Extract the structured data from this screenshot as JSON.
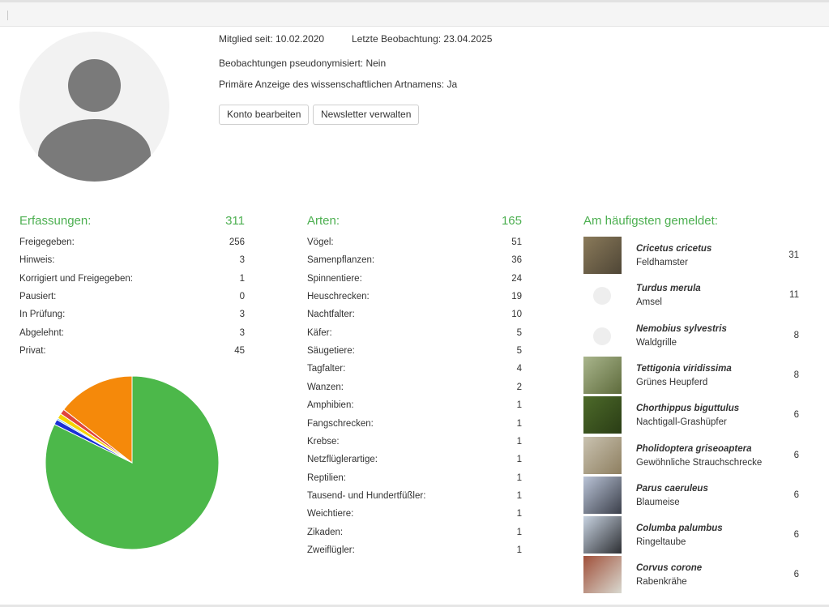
{
  "profile": {
    "member_since": "Mitglied seit: 10.02.2020",
    "last_observation": "Letzte Beobachtung: 23.04.2025",
    "pseudonymized": "Beobachtungen pseudonymisiert: Nein",
    "scientific_name_display": "Primäre Anzeige des wissenschaftlichen Artnamens: Ja",
    "edit_account_label": "Konto bearbeiten",
    "newsletter_label": "Newsletter verwalten"
  },
  "erfassungen": {
    "title": "Erfassungen:",
    "total": "311",
    "rows": [
      {
        "label": "Freigegeben:",
        "value": 256
      },
      {
        "label": "Hinweis:",
        "value": 3
      },
      {
        "label": "Korrigiert und Freigegeben:",
        "value": 1
      },
      {
        "label": "Pausiert:",
        "value": 0
      },
      {
        "label": "In Prüfung:",
        "value": 3
      },
      {
        "label": "Abgelehnt:",
        "value": 3
      },
      {
        "label": "Privat:",
        "value": 45
      }
    ]
  },
  "chart_data": {
    "type": "pie",
    "categories": [
      "Freigegeben",
      "Hinweis",
      "Korrigiert und Freigegeben",
      "Pausiert",
      "In Prüfung",
      "Abgelehnt",
      "Privat"
    ],
    "values": [
      256,
      3,
      1,
      0,
      3,
      3,
      45
    ],
    "colors": [
      "#4cb84a",
      "#1a2fd6",
      "#7cc8e8",
      "#999999",
      "#f5d400",
      "#e0453c",
      "#f5890a"
    ]
  },
  "arten": {
    "title": "Arten:",
    "total": "165",
    "rows": [
      {
        "label": "Vögel:",
        "value": 51
      },
      {
        "label": "Samenpflanzen:",
        "value": 36
      },
      {
        "label": "Spinnentiere:",
        "value": 24
      },
      {
        "label": "Heuschrecken:",
        "value": 19
      },
      {
        "label": "Nachtfalter:",
        "value": 10
      },
      {
        "label": "Käfer:",
        "value": 5
      },
      {
        "label": "Säugetiere:",
        "value": 5
      },
      {
        "label": "Tagfalter:",
        "value": 4
      },
      {
        "label": "Wanzen:",
        "value": 2
      },
      {
        "label": "Amphibien:",
        "value": 1
      },
      {
        "label": "Fangschrecken:",
        "value": 1
      },
      {
        "label": "Krebse:",
        "value": 1
      },
      {
        "label": "Netzflüglerartige:",
        "value": 1
      },
      {
        "label": "Reptilien:",
        "value": 1
      },
      {
        "label": "Tausend- und Hundertfüßler:",
        "value": 1
      },
      {
        "label": "Weichtiere:",
        "value": 1
      },
      {
        "label": "Zikaden:",
        "value": 1
      },
      {
        "label": "Zweiflügler:",
        "value": 1
      }
    ]
  },
  "top_species": {
    "title": "Am häufigsten gemeldet:",
    "items": [
      {
        "scientific": "Cricetus cricetus",
        "common": "Feldhamster",
        "count": 31,
        "thumb": "photo",
        "colors": [
          "#8a7a5a",
          "#4f4636"
        ]
      },
      {
        "scientific": "Turdus merula",
        "common": "Amsel",
        "count": 11,
        "thumb": "placeholder"
      },
      {
        "scientific": "Nemobius sylvestris",
        "common": "Waldgrille",
        "count": 8,
        "thumb": "placeholder"
      },
      {
        "scientific": "Tettigonia viridissima",
        "common": "Grünes Heupferd",
        "count": 8,
        "thumb": "photo",
        "colors": [
          "#a9b58c",
          "#5e6b3c"
        ]
      },
      {
        "scientific": "Chorthippus biguttulus",
        "common": "Nachtigall-Grashüpfer",
        "count": 6,
        "thumb": "photo",
        "colors": [
          "#4d6a2a",
          "#2a3d15"
        ]
      },
      {
        "scientific": "Pholidoptera griseoaptera",
        "common": "Gewöhnliche Strauchschrecke",
        "count": 6,
        "thumb": "photo",
        "colors": [
          "#c9c2b0",
          "#8e7f60"
        ]
      },
      {
        "scientific": "Parus caeruleus",
        "common": "Blaumeise",
        "count": 6,
        "thumb": "photo",
        "colors": [
          "#b9c3d6",
          "#3b3f4a"
        ]
      },
      {
        "scientific": "Columba palumbus",
        "common": "Ringeltaube",
        "count": 6,
        "thumb": "photo",
        "colors": [
          "#c7d2e0",
          "#2d2f33"
        ]
      },
      {
        "scientific": "Corvus corone",
        "common": "Rabenkrähe",
        "count": 6,
        "thumb": "photo",
        "colors": [
          "#a0503a",
          "#d9d9d0"
        ]
      }
    ]
  }
}
